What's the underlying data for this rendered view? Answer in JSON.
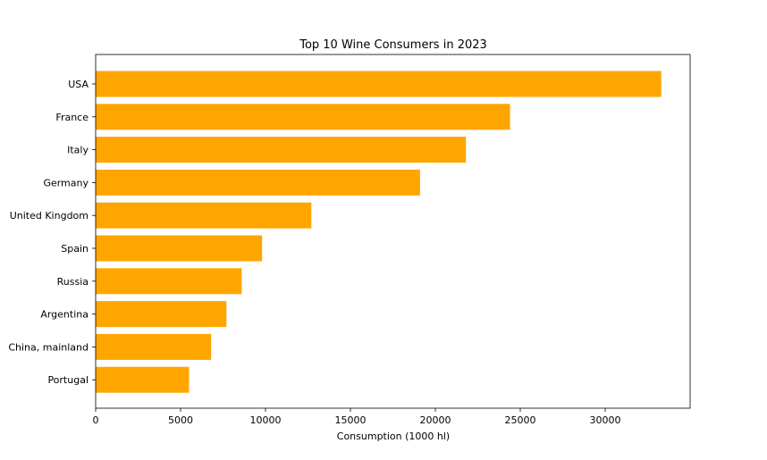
{
  "chart_data": {
    "type": "bar",
    "orientation": "horizontal",
    "title": "Top 10 Wine Consumers in 2023",
    "xlabel": "Consumption (1000 hl)",
    "ylabel": "",
    "categories": [
      "USA",
      "France",
      "Italy",
      "Germany",
      "United Kingdom",
      "Spain",
      "Russia",
      "Argentina",
      "China, mainland",
      "Portugal"
    ],
    "values": [
      33300,
      24400,
      21800,
      19100,
      12700,
      9800,
      8600,
      7700,
      6800,
      5500
    ],
    "xlim": [
      0,
      35000
    ],
    "xticks": [
      0,
      5000,
      10000,
      15000,
      20000,
      25000,
      30000
    ],
    "xtick_labels": [
      "0",
      "5000",
      "10000",
      "15000",
      "20000",
      "25000",
      "30000"
    ],
    "bar_color": "#FFA500",
    "grid": false,
    "legend": "none"
  }
}
